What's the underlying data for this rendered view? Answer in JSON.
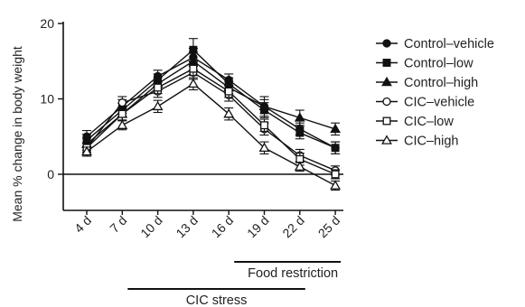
{
  "chart_data": {
    "type": "line",
    "x": [
      "4 d",
      "7 d",
      "10 d",
      "13 d",
      "16 d",
      "19 d",
      "22 d",
      "25 d"
    ],
    "ylabel": "Mean % change in body weight",
    "xlabel": "",
    "ylim": [
      -4,
      20
    ],
    "yticks": [
      0,
      10,
      20
    ],
    "grid": false,
    "legend_placement": "right",
    "series": [
      {
        "name": "Control–vehicle",
        "marker": "circle-filled",
        "values": [
          5.0,
          9.0,
          13.0,
          15.5,
          12.5,
          9.0,
          6.0,
          3.5
        ],
        "errors": [
          0.8,
          0.9,
          0.8,
          1.2,
          0.8,
          0.9,
          0.8,
          0.8
        ]
      },
      {
        "name": "Control–low",
        "marker": "square-filled",
        "values": [
          4.5,
          8.5,
          12.5,
          16.5,
          12.0,
          8.5,
          5.5,
          3.5
        ],
        "errors": [
          0.8,
          0.9,
          0.8,
          1.5,
          0.8,
          1.0,
          0.8,
          0.8
        ]
      },
      {
        "name": "Control–high",
        "marker": "triangle-filled",
        "values": [
          4.0,
          8.0,
          12.0,
          15.0,
          11.5,
          9.0,
          7.5,
          6.0
        ],
        "errors": [
          0.8,
          0.9,
          0.8,
          1.2,
          0.8,
          1.3,
          1.0,
          0.8
        ]
      },
      {
        "name": "CIC–vehicle",
        "marker": "circle-open",
        "values": [
          3.5,
          9.5,
          11.0,
          13.5,
          10.5,
          6.0,
          2.5,
          0.5
        ],
        "errors": [
          0.6,
          0.8,
          0.8,
          0.9,
          0.8,
          0.8,
          0.8,
          0.6
        ]
      },
      {
        "name": "CIC–low",
        "marker": "square-open",
        "values": [
          3.5,
          8.0,
          11.5,
          14.0,
          11.0,
          6.5,
          2.0,
          0.0
        ],
        "errors": [
          0.6,
          0.8,
          0.8,
          0.9,
          0.8,
          0.8,
          0.8,
          0.6
        ]
      },
      {
        "name": "CIC–high",
        "marker": "triangle-open",
        "values": [
          3.0,
          6.5,
          9.0,
          12.0,
          8.0,
          3.5,
          1.0,
          -1.5
        ],
        "errors": [
          0.6,
          0.6,
          0.8,
          0.8,
          0.8,
          0.8,
          0.6,
          0.6
        ]
      }
    ],
    "annotations": [
      {
        "label": "Food restriction",
        "from": "16 d",
        "to": "25 d"
      },
      {
        "label": "CIC stress",
        "from": "7 d",
        "to": "22 d"
      }
    ]
  }
}
